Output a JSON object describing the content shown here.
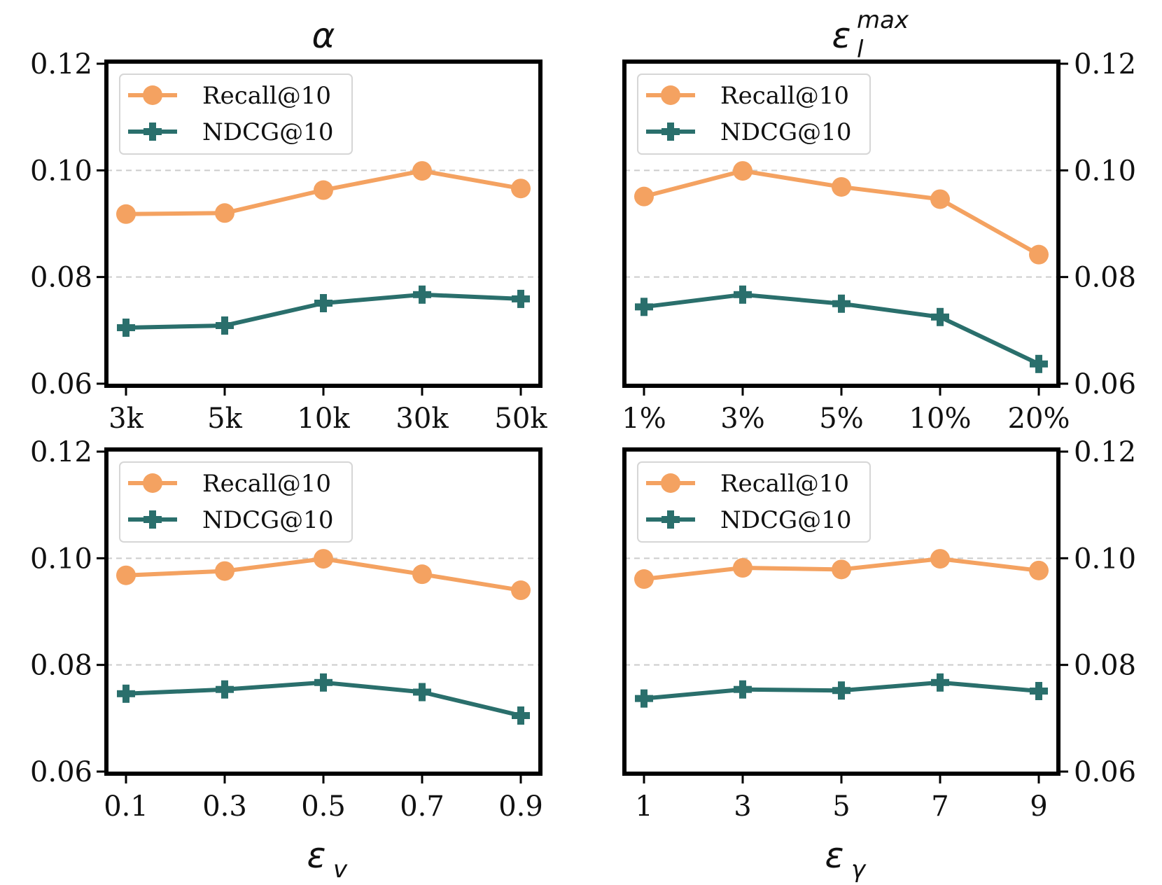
{
  "colors": {
    "recall": "#F4A261",
    "ndcg": "#2A6F6C",
    "grid": "#CCCCCC",
    "frame": "#000000"
  },
  "chart_data": [
    {
      "type": "line",
      "title": "α",
      "xlabel": "",
      "categories": [
        "3k",
        "5k",
        "10k",
        "30k",
        "50k"
      ],
      "yticks": [
        "0.06",
        "0.08",
        "0.10",
        "0.12"
      ],
      "ylim": [
        0.06,
        0.12
      ],
      "y_axis_side": "left",
      "legend_position": "top-left",
      "series": [
        {
          "name": "Recall@10",
          "marker": "circle",
          "values": [
            0.0918,
            0.092,
            0.0963,
            0.0999,
            0.0966
          ]
        },
        {
          "name": "NDCG@10",
          "marker": "plus",
          "values": [
            0.0705,
            0.0709,
            0.0751,
            0.0767,
            0.0759
          ]
        }
      ]
    },
    {
      "type": "line",
      "title": "ε",
      "title_sub": "l",
      "title_sup": "max",
      "xlabel": "",
      "categories": [
        "1%",
        "3%",
        "5%",
        "10%",
        "20%"
      ],
      "yticks": [
        "0.06",
        "0.08",
        "0.10",
        "0.12"
      ],
      "ylim": [
        0.06,
        0.12
      ],
      "y_axis_side": "right",
      "legend_position": "top-left",
      "series": [
        {
          "name": "Recall@10",
          "marker": "circle",
          "values": [
            0.0951,
            0.0999,
            0.0969,
            0.0946,
            0.0842
          ]
        },
        {
          "name": "NDCG@10",
          "marker": "plus",
          "values": [
            0.0744,
            0.0767,
            0.075,
            0.0725,
            0.0637
          ]
        }
      ]
    },
    {
      "type": "line",
      "title": "",
      "xlabel": "ε",
      "xlabel_sub": "v",
      "categories": [
        "0.1",
        "0.3",
        "0.5",
        "0.7",
        "0.9"
      ],
      "yticks": [
        "0.06",
        "0.08",
        "0.10",
        "0.12"
      ],
      "ylim": [
        0.06,
        0.12
      ],
      "y_axis_side": "left",
      "legend_position": "top-left",
      "series": [
        {
          "name": "Recall@10",
          "marker": "circle",
          "values": [
            0.0968,
            0.0976,
            0.0999,
            0.097,
            0.094
          ]
        },
        {
          "name": "NDCG@10",
          "marker": "plus",
          "values": [
            0.0746,
            0.0754,
            0.0767,
            0.0749,
            0.0705
          ]
        }
      ]
    },
    {
      "type": "line",
      "title": "",
      "xlabel": "ε",
      "xlabel_sub": "γ",
      "categories": [
        "1",
        "3",
        "5",
        "7",
        "9"
      ],
      "yticks": [
        "0.06",
        "0.08",
        "0.10",
        "0.12"
      ],
      "ylim": [
        0.06,
        0.12
      ],
      "y_axis_side": "right",
      "legend_position": "top-left",
      "series": [
        {
          "name": "Recall@10",
          "marker": "circle",
          "values": [
            0.0961,
            0.0982,
            0.0979,
            0.0999,
            0.0977
          ]
        },
        {
          "name": "NDCG@10",
          "marker": "plus",
          "values": [
            0.0737,
            0.0754,
            0.0752,
            0.0767,
            0.0751
          ]
        }
      ]
    }
  ]
}
